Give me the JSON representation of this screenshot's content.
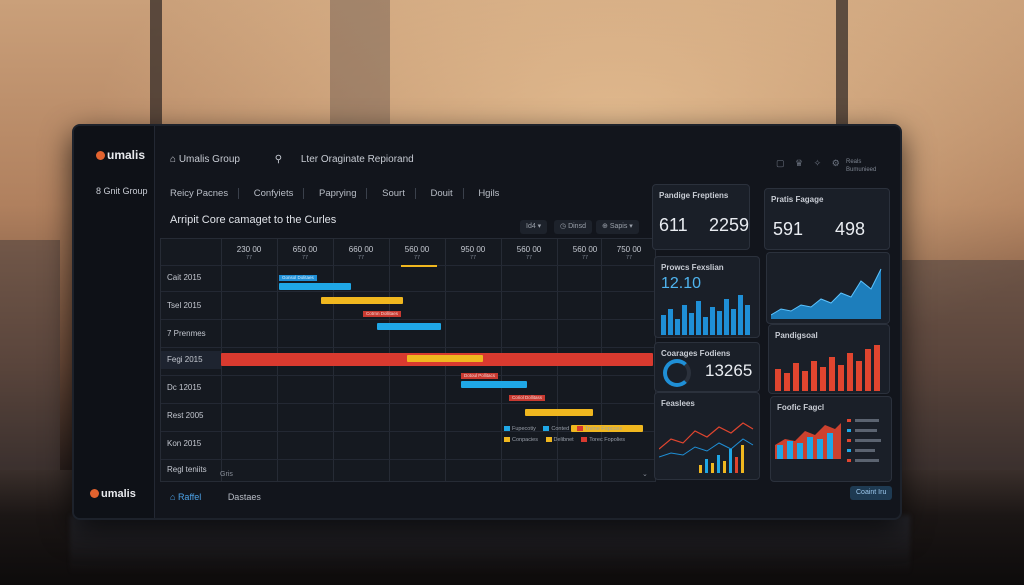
{
  "app": {
    "brand": "umalis",
    "sidebar_item": "8 Gnit Group",
    "sidebar_brand": "umalis"
  },
  "topbar": {
    "workspace": "Umalis Group",
    "search_text": "Lter Oraginate Repiorand"
  },
  "tabs": [
    "Reicy Pacnes",
    "Confyiets",
    "Paprying",
    "Sourt",
    "Douit",
    "Hgils"
  ],
  "gantt": {
    "title": "Arripit Core camaget to the Curles",
    "controls": [
      "Id4",
      "Dinsd",
      "Sapis"
    ],
    "columns": [
      {
        "head": "230 00",
        "sub": "77"
      },
      {
        "head": "650 00",
        "sub": "77"
      },
      {
        "head": "660 00",
        "sub": "77"
      },
      {
        "head": "560 00",
        "sub": "77"
      },
      {
        "head": "950 00",
        "sub": "77"
      },
      {
        "head": "560 00",
        "sub": "77"
      },
      {
        "head": "560 00",
        "sub": "77"
      },
      {
        "head": "750 00",
        "sub": "77"
      }
    ],
    "rows": [
      "Cait 2015",
      "Tsel 2015",
      "7 Prenmes",
      "Fegi 2015",
      "Dc 12015",
      "Rest 2005",
      "Kon 2015",
      "Regl teniits"
    ],
    "tags": [
      "Gonsol Dolitaes",
      "Cotrnn Dollitaes",
      "Dotoul Pollitacs",
      "Coriol Dollitass"
    ],
    "legend": [
      "Fupecotiy",
      "Conted",
      "Trvine Fopcces",
      "Conpacies",
      "Delibnet",
      "Torec Fopolies"
    ],
    "footer": "Gris",
    "colors": {
      "blue": "#1fa7e6",
      "yellow": "#f0b71f",
      "red": "#d93a2f"
    }
  },
  "bottom_tabs": {
    "active": "Raffel",
    "other": "Dastaes"
  },
  "action_button": "Coaint Iru",
  "cards": [
    {
      "title": "Pandige Freptiens",
      "values": [
        "611",
        "2259"
      ]
    },
    {
      "title": "Pratis Fagage",
      "values": [
        "591",
        "498"
      ]
    },
    {
      "title": "Prowcs Fexslian",
      "values": [
        "12.10"
      ]
    },
    {
      "title": "Coarages Fodiens",
      "values": [
        "13265"
      ]
    },
    {
      "title": "Pandigsoal",
      "values": []
    },
    {
      "title": "Feaslees",
      "values": []
    },
    {
      "title": "Foofic Fagcl",
      "values": []
    }
  ],
  "header_icons": [
    "clipboard-icon",
    "crown-icon",
    "twitter-icon",
    "gear-icon"
  ],
  "header_side_text": [
    "Reals",
    "Bumunieed"
  ]
}
